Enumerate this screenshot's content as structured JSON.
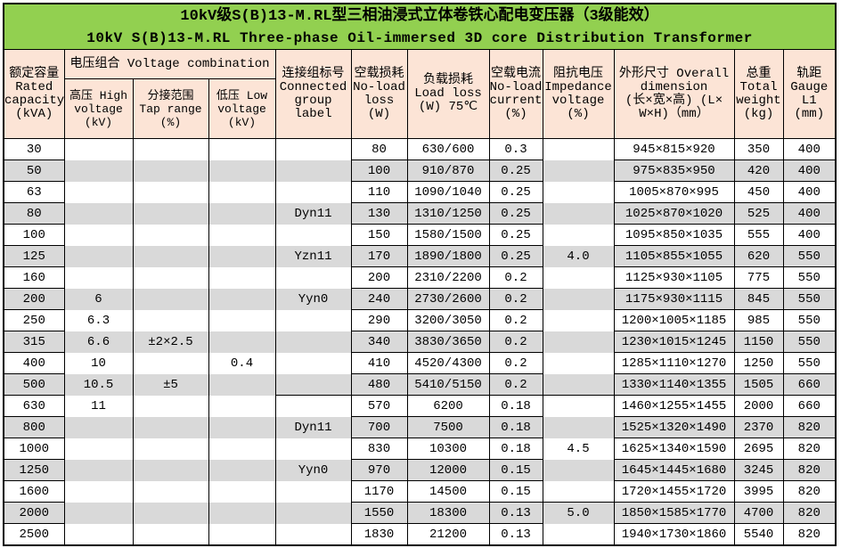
{
  "title": {
    "line1": "10kV级S(B)13-M.RL型三相油浸式立体卷铁心配电变压器（3级能效）",
    "line2": "10kV S(B)13-M.RL Three-phase Oil-immersed 3D core Distribution Transformer"
  },
  "colors": {
    "title_bg": "#92D050",
    "header_bg": "#FCE4D6",
    "stripe": "#D9D9D9",
    "border": "#000000"
  },
  "header": {
    "capacity": "额定容量\nRated\ncapacity\n(kVA)",
    "voltage_combination": "电压组合 Voltage combination",
    "high_voltage": "高压 High\nvoltage\n(kV)",
    "tap_range": "分接范围\nTap range\n(%)",
    "low_voltage": "低压 Low\nvoltage\n(kV)",
    "group": "连接组标号\nConnected\ngroup\nlabel",
    "no_load_loss": "空载损耗\nNo-load\nloss\n(W)",
    "load_loss": "负载损耗\nLoad loss\n(W) 75℃",
    "no_load_current": "空载电流\nNo-load\ncurrent\n(%)",
    "impedance": "阻抗电压\nImpedance\nvoltage\n(%)",
    "dimension": "外形尺寸 Overall\ndimension\n(长×宽×高) (L×\nW×H)（mm）",
    "weight": "总重\nTotal\nweight\n(kg)",
    "gauge": "轨距\nGauge\nL1\n(mm)"
  },
  "rows": [
    {
      "capacity": "30",
      "hv": "",
      "tap": "",
      "lv": "",
      "group": "",
      "noload": "80",
      "loadloss": "630/600",
      "current": "0.3",
      "impedance": "",
      "dimension": "945×815×920",
      "weight": "350",
      "gauge": "400"
    },
    {
      "capacity": "50",
      "hv": "",
      "tap": "",
      "lv": "",
      "group": "",
      "noload": "100",
      "loadloss": "910/870",
      "current": "0.25",
      "impedance": "",
      "dimension": "975×835×950",
      "weight": "420",
      "gauge": "400"
    },
    {
      "capacity": "63",
      "hv": "",
      "tap": "",
      "lv": "",
      "group": "",
      "noload": "110",
      "loadloss": "1090/1040",
      "current": "0.25",
      "impedance": "",
      "dimension": "1005×870×995",
      "weight": "450",
      "gauge": "400"
    },
    {
      "capacity": "80",
      "hv": "",
      "tap": "",
      "lv": "",
      "group": "Dyn11",
      "noload": "130",
      "loadloss": "1310/1250",
      "current": "0.25",
      "impedance": "",
      "dimension": "1025×870×1020",
      "weight": "525",
      "gauge": "400"
    },
    {
      "capacity": "100",
      "hv": "",
      "tap": "",
      "lv": "",
      "group": "",
      "noload": "150",
      "loadloss": "1580/1500",
      "current": "0.25",
      "impedance": "",
      "dimension": "1095×850×1035",
      "weight": "555",
      "gauge": "400"
    },
    {
      "capacity": "125",
      "hv": "",
      "tap": "",
      "lv": "",
      "group": "Yzn11",
      "noload": "170",
      "loadloss": "1890/1800",
      "current": "0.25",
      "impedance": "4.0",
      "dimension": "1105×855×1055",
      "weight": "620",
      "gauge": "550"
    },
    {
      "capacity": "160",
      "hv": "",
      "tap": "",
      "lv": "",
      "group": "",
      "noload": "200",
      "loadloss": "2310/2200",
      "current": "0.2",
      "impedance": "",
      "dimension": "1125×930×1105",
      "weight": "775",
      "gauge": "550"
    },
    {
      "capacity": "200",
      "hv": "6",
      "tap": "",
      "lv": "",
      "group": "Yyn0",
      "noload": "240",
      "loadloss": "2730/2600",
      "current": "0.2",
      "impedance": "",
      "dimension": "1175×930×1115",
      "weight": "845",
      "gauge": "550"
    },
    {
      "capacity": "250",
      "hv": "6.3",
      "tap": "",
      "lv": "",
      "group": "",
      "noload": "290",
      "loadloss": "3200/3050",
      "current": "0.2",
      "impedance": "",
      "dimension": "1200×1005×1185",
      "weight": "985",
      "gauge": "550"
    },
    {
      "capacity": "315",
      "hv": "6.6",
      "tap": "±2×2.5",
      "lv": "",
      "group": "",
      "noload": "340",
      "loadloss": "3830/3650",
      "current": "0.2",
      "impedance": "",
      "dimension": "1230×1015×1245",
      "weight": "1150",
      "gauge": "550"
    },
    {
      "capacity": "400",
      "hv": "10",
      "tap": "",
      "lv": "0.4",
      "group": "",
      "noload": "410",
      "loadloss": "4520/4300",
      "current": "0.2",
      "impedance": "",
      "dimension": "1285×1110×1270",
      "weight": "1250",
      "gauge": "550"
    },
    {
      "capacity": "500",
      "hv": "10.5",
      "tap": "±5",
      "lv": "",
      "group": "",
      "noload": "480",
      "loadloss": "5410/5150",
      "current": "0.2",
      "impedance": "",
      "dimension": "1330×1140×1355",
      "weight": "1505",
      "gauge": "660"
    },
    {
      "capacity": "630",
      "hv": "11",
      "tap": "",
      "lv": "",
      "group": "",
      "noload": "570",
      "loadloss": "6200",
      "current": "0.18",
      "impedance": "",
      "dimension": "1460×1255×1455",
      "weight": "2000",
      "gauge": "660"
    },
    {
      "capacity": "800",
      "hv": "",
      "tap": "",
      "lv": "",
      "group": "Dyn11",
      "noload": "700",
      "loadloss": "7500",
      "current": "0.18",
      "impedance": "",
      "dimension": "1525×1320×1490",
      "weight": "2370",
      "gauge": "820"
    },
    {
      "capacity": "1000",
      "hv": "",
      "tap": "",
      "lv": "",
      "group": "",
      "noload": "830",
      "loadloss": "10300",
      "current": "0.18",
      "impedance": "4.5",
      "dimension": "1625×1340×1590",
      "weight": "2695",
      "gauge": "820"
    },
    {
      "capacity": "1250",
      "hv": "",
      "tap": "",
      "lv": "",
      "group": "Yyn0",
      "noload": "970",
      "loadloss": "12000",
      "current": "0.15",
      "impedance": "",
      "dimension": "1645×1445×1680",
      "weight": "3245",
      "gauge": "820"
    },
    {
      "capacity": "1600",
      "hv": "",
      "tap": "",
      "lv": "",
      "group": "",
      "noload": "1170",
      "loadloss": "14500",
      "current": "0.15",
      "impedance": "",
      "dimension": "1720×1455×1720",
      "weight": "3995",
      "gauge": "820"
    },
    {
      "capacity": "2000",
      "hv": "",
      "tap": "",
      "lv": "",
      "group": "",
      "noload": "1550",
      "loadloss": "18300",
      "current": "0.13",
      "impedance": "5.0",
      "dimension": "1850×1585×1770",
      "weight": "4700",
      "gauge": "820"
    },
    {
      "capacity": "2500",
      "hv": "",
      "tap": "",
      "lv": "",
      "group": "",
      "noload": "1830",
      "loadloss": "21200",
      "current": "0.13",
      "impedance": "",
      "dimension": "1940×1730×1860",
      "weight": "5540",
      "gauge": "820"
    }
  ]
}
